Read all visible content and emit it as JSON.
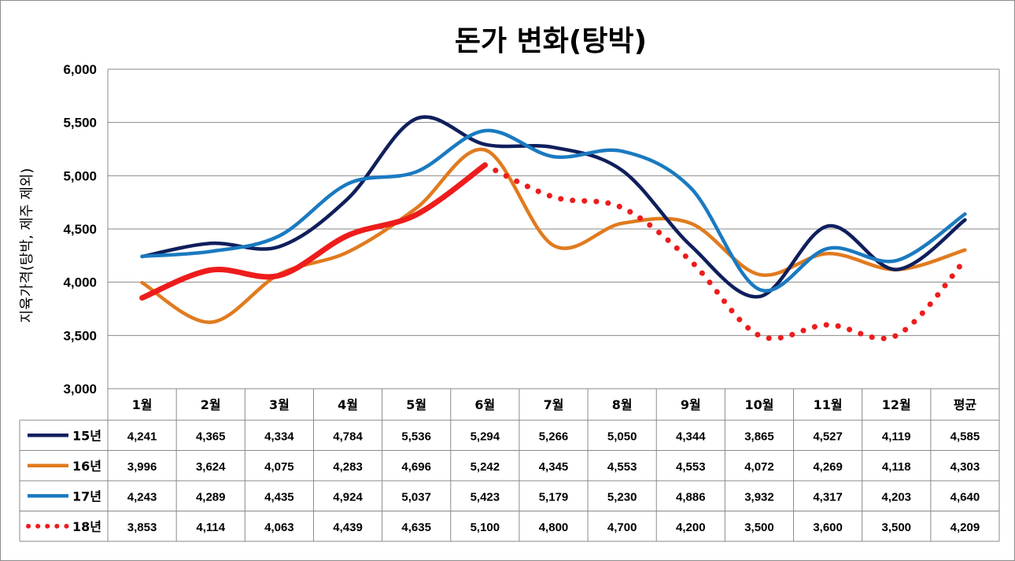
{
  "chart_data": {
    "type": "line",
    "title": "돈가 변화(탕박)",
    "ylabel": "지육가격(탕박, 제주 제외)",
    "xlabel": "",
    "ylim": [
      3000,
      6000
    ],
    "yticks": [
      "3,000",
      "3,500",
      "4,000",
      "4,500",
      "5,000",
      "5,500",
      "6,000"
    ],
    "categories": [
      "1월",
      "2월",
      "3월",
      "4월",
      "5월",
      "6월",
      "7월",
      "8월",
      "9월",
      "10월",
      "11월",
      "12월",
      "평균"
    ],
    "grid": true,
    "legend": "data-table",
    "series": [
      {
        "name": "15년",
        "color": "#0f1f5c",
        "style": "solid",
        "values": [
          4241,
          4365,
          4334,
          4784,
          5536,
          5294,
          5266,
          5050,
          4344,
          3865,
          4527,
          4119,
          4585
        ],
        "labels": [
          "4,241",
          "4,365",
          "4,334",
          "4,784",
          "5,536",
          "5,294",
          "5,266",
          "5,050",
          "4,344",
          "3,865",
          "4,527",
          "4,119",
          "4,585"
        ]
      },
      {
        "name": "16년",
        "color": "#e07b1f",
        "style": "solid",
        "values": [
          3996,
          3624,
          4075,
          4283,
          4696,
          5242,
          4345,
          4553,
          4553,
          4072,
          4269,
          4118,
          4303
        ],
        "labels": [
          "3,996",
          "3,624",
          "4,075",
          "4,283",
          "4,696",
          "5,242",
          "4,345",
          "4,553",
          "4,553",
          "4,072",
          "4,269",
          "4,118",
          "4,303"
        ]
      },
      {
        "name": "17년",
        "color": "#1a7ac0",
        "style": "solid",
        "values": [
          4243,
          4289,
          4435,
          4924,
          5037,
          5423,
          5179,
          5230,
          4886,
          3932,
          4317,
          4203,
          4640
        ],
        "labels": [
          "4,243",
          "4,289",
          "4,435",
          "4,924",
          "5,037",
          "5,423",
          "5,179",
          "5,230",
          "4,886",
          "3,932",
          "4,317",
          "4,203",
          "4,640"
        ]
      },
      {
        "name": "18년",
        "color": "#ee1c1c",
        "style": "thick-then-dotted",
        "solid_until_index": 5,
        "values": [
          3853,
          4114,
          4063,
          4439,
          4635,
          5100,
          4800,
          4700,
          4200,
          3500,
          3600,
          3500,
          4209
        ],
        "labels": [
          "3,853",
          "4,114",
          "4,063",
          "4,439",
          "4,635",
          "5,100",
          "4,800",
          "4,700",
          "4,200",
          "3,500",
          "3,600",
          "3,500",
          "4,209"
        ]
      }
    ]
  }
}
